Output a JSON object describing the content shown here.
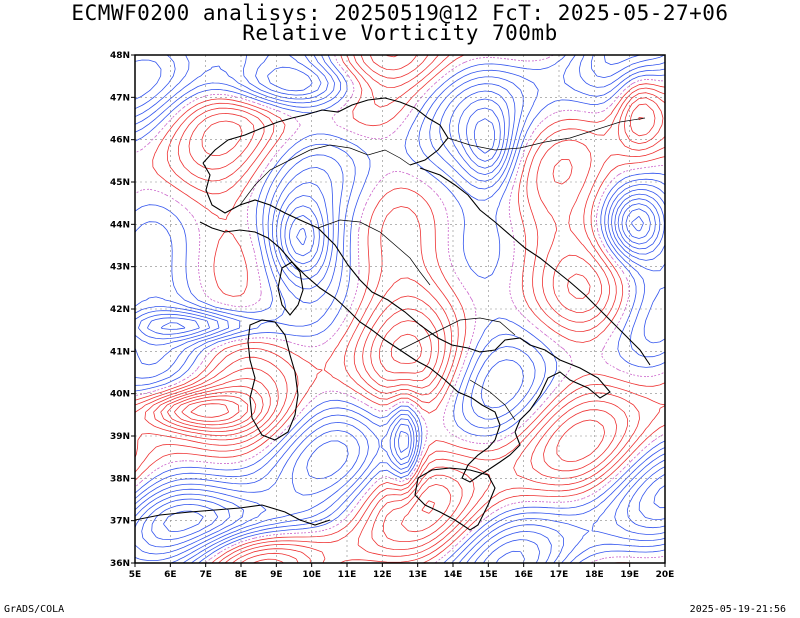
{
  "title_line1": "ECMWF0200 analisys: 20250519@12 FcT: 2025-05-27+06",
  "title_line2": "Relative Vorticity 700mb",
  "footer_left": "GrADS/COLA",
  "footer_right": "2025-05-19-21:56",
  "map": {
    "lon_range": [
      5,
      20
    ],
    "lat_range": [
      36,
      48
    ],
    "lon_labels": [
      "5E",
      "6E",
      "7E",
      "8E",
      "9E",
      "10E",
      "11E",
      "12E",
      "13E",
      "14E",
      "15E",
      "16E",
      "17E",
      "18E",
      "19E",
      "20E"
    ],
    "lat_labels": [
      "36N",
      "37N",
      "38N",
      "39N",
      "40N",
      "41N",
      "42N",
      "43N",
      "44N",
      "45N",
      "46N",
      "47N",
      "48N"
    ],
    "grid": true,
    "colors": {
      "positive_contour": "#ee3333",
      "negative_contour": "#3355ee",
      "zero_contour": "#cc66cc",
      "borders": "#000000",
      "grid": "#888888"
    }
  }
}
